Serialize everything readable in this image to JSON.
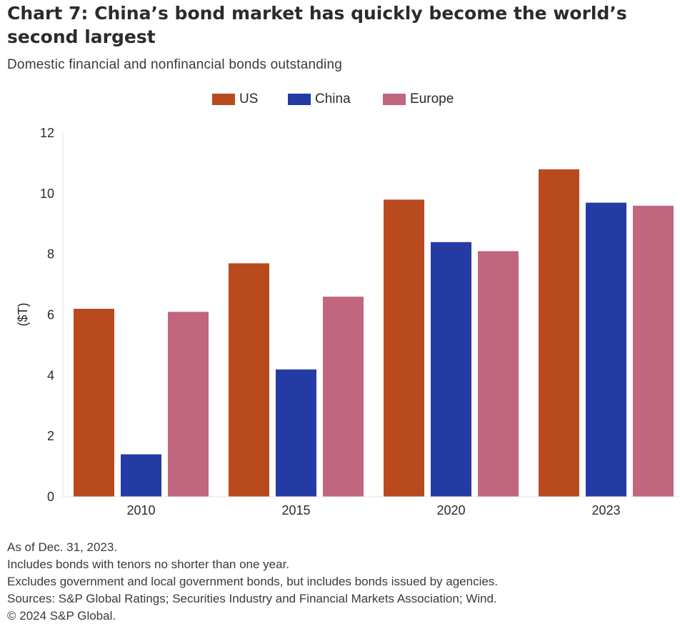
{
  "chart_data": {
    "type": "bar",
    "title": "Chart 7: China’s bond market has quickly become the world’s second largest",
    "subtitle": "Domestic financial and nonfinancial bonds outstanding",
    "xlabel": "",
    "ylabel": "($T)",
    "ylim": [
      0,
      12
    ],
    "yticks": [
      0,
      2,
      4,
      6,
      8,
      10,
      12
    ],
    "categories": [
      "2010",
      "2015",
      "2020",
      "2023"
    ],
    "series": [
      {
        "name": "US",
        "color": "#b84a1e",
        "values": [
          6.2,
          7.7,
          9.8,
          10.8
        ]
      },
      {
        "name": "China",
        "color": "#243ba6",
        "values": [
          1.4,
          4.2,
          8.4,
          9.7
        ]
      },
      {
        "name": "Europe",
        "color": "#c0667f",
        "values": [
          6.1,
          6.6,
          8.1,
          9.6
        ]
      }
    ],
    "legend_position": "top-center",
    "grid": false
  },
  "footnotes": [
    "As of Dec. 31, 2023.",
    "Includes bonds with tenors no shorter than one year.",
    "Excludes government and local government bonds, but includes bonds issued by agencies.",
    "Sources: S&P Global Ratings; Securities Industry and Financial Markets Association; Wind.",
    "© 2024 S&P Global."
  ]
}
